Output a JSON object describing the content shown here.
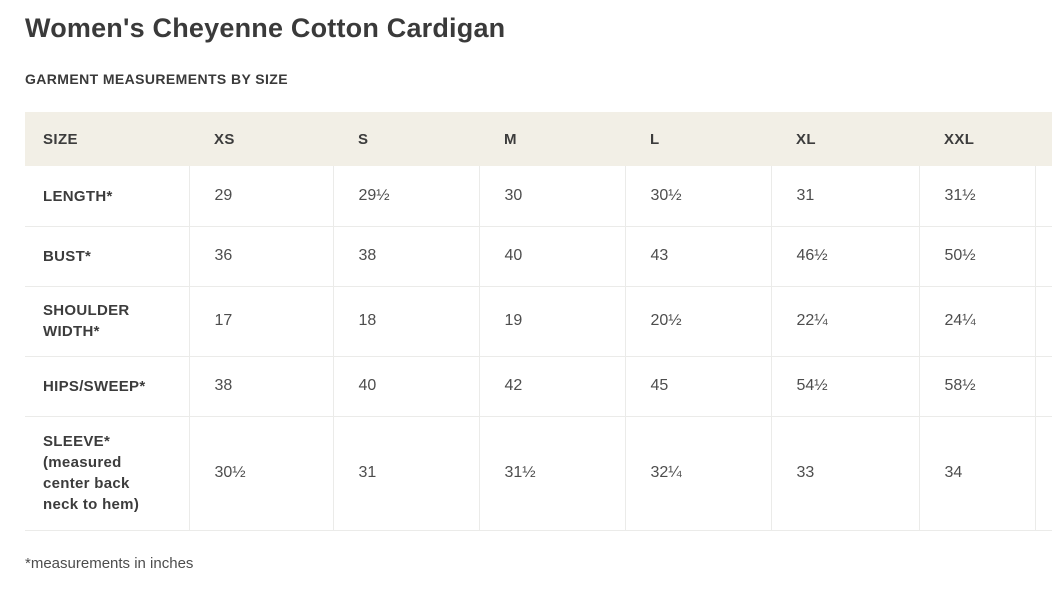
{
  "page": {
    "title": "Women's Cheyenne Cotton Cardigan",
    "subtitle": "GARMENT MEASUREMENTS BY SIZE",
    "footnote": "*measurements in inches"
  },
  "size_chart": {
    "columns": [
      "SIZE",
      "XS",
      "S",
      "M",
      "L",
      "XL",
      "XXL"
    ],
    "rows": [
      {
        "label": "LENGTH*",
        "values": [
          "29",
          "29½",
          "30",
          "30½",
          "31",
          "31½"
        ]
      },
      {
        "label": "BUST*",
        "values": [
          "36",
          "38",
          "40",
          "43",
          "46½",
          "50½"
        ]
      },
      {
        "label": "SHOULDER WIDTH*",
        "values": [
          "17",
          "18",
          "19",
          "20½",
          "22¼",
          "24¼"
        ]
      },
      {
        "label": "HIPS/SWEEP*",
        "values": [
          "38",
          "40",
          "42",
          "45",
          "54½",
          "58½"
        ]
      },
      {
        "label": "SLEEVE* (measured center back neck to hem)",
        "values": [
          "30½",
          "31",
          "31½",
          "32¼",
          "33",
          "34"
        ]
      }
    ],
    "units": "inches"
  },
  "colors": {
    "header_background": "#f2efe6",
    "grid_border": "#ebebe9",
    "text": "#3c3c3c"
  }
}
